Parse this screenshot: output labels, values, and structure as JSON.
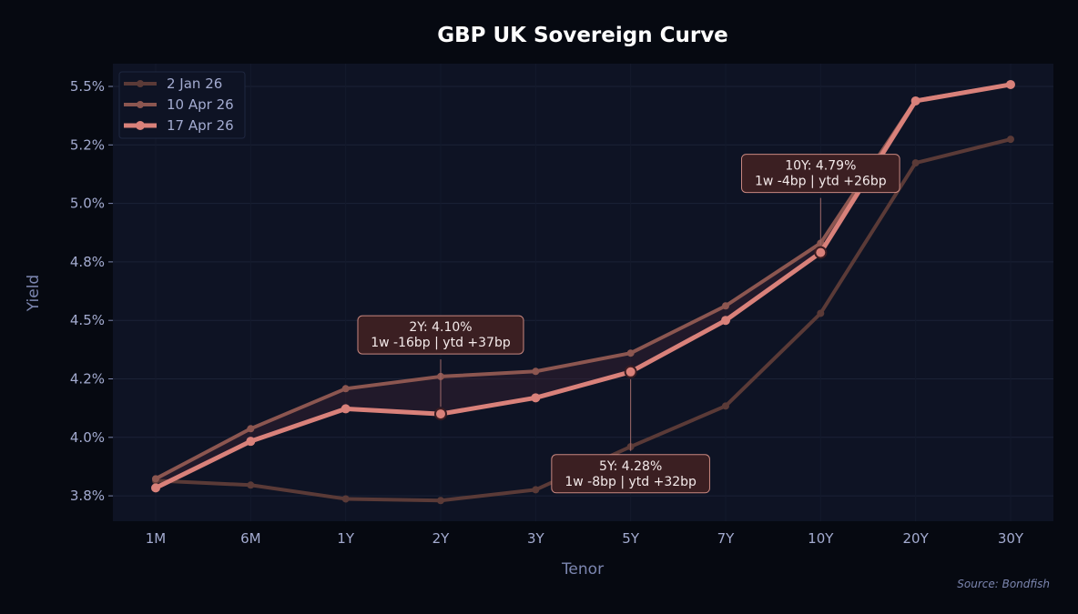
{
  "chart_data": {
    "type": "line",
    "title": "GBP UK Sovereign Curve",
    "xlabel": "Tenor",
    "ylabel": "Yield",
    "categories": [
      "1M",
      "6M",
      "1Y",
      "2Y",
      "3Y",
      "5Y",
      "7Y",
      "10Y",
      "20Y",
      "30Y"
    ],
    "ylim": [
      3.64,
      5.6
    ],
    "yticks": [
      3.75,
      4.0,
      4.25,
      4.5,
      4.75,
      5.0,
      5.25,
      5.5
    ],
    "ytick_labels": [
      "3.8%",
      "4.0%",
      "4.2%",
      "4.5%",
      "4.8%",
      "5.0%",
      "5.2%",
      "5.5%"
    ],
    "grid": true,
    "legend_position": "top-left",
    "series": [
      {
        "name": "2 Jan 26",
        "color": "#5a3a37",
        "values": [
          3.815,
          3.796,
          3.737,
          3.73,
          3.776,
          3.96,
          4.134,
          4.53,
          5.173,
          5.274
        ]
      },
      {
        "name": "10 Apr 26",
        "color": "#8c5650",
        "values": [
          3.823,
          4.037,
          4.208,
          4.26,
          4.282,
          4.36,
          4.562,
          4.83,
          5.44,
          5.508
        ]
      },
      {
        "name": "17 Apr 26",
        "color": "#d9817a",
        "values": [
          3.784,
          3.983,
          4.122,
          4.1,
          4.169,
          4.28,
          4.5,
          4.79,
          5.438,
          5.508
        ]
      }
    ],
    "annotations": [
      {
        "tenor": "2Y",
        "line1": "2Y: 4.10%",
        "line2": "1w -16bp | ytd +37bp",
        "placement": "above"
      },
      {
        "tenor": "5Y",
        "line1": "5Y: 4.28%",
        "line2": "1w -8bp | ytd +32bp",
        "placement": "below"
      },
      {
        "tenor": "10Y",
        "line1": "10Y: 4.79%",
        "line2": "1w -4bp | ytd +26bp",
        "placement": "above"
      }
    ],
    "source": "Source: Bondfish"
  }
}
